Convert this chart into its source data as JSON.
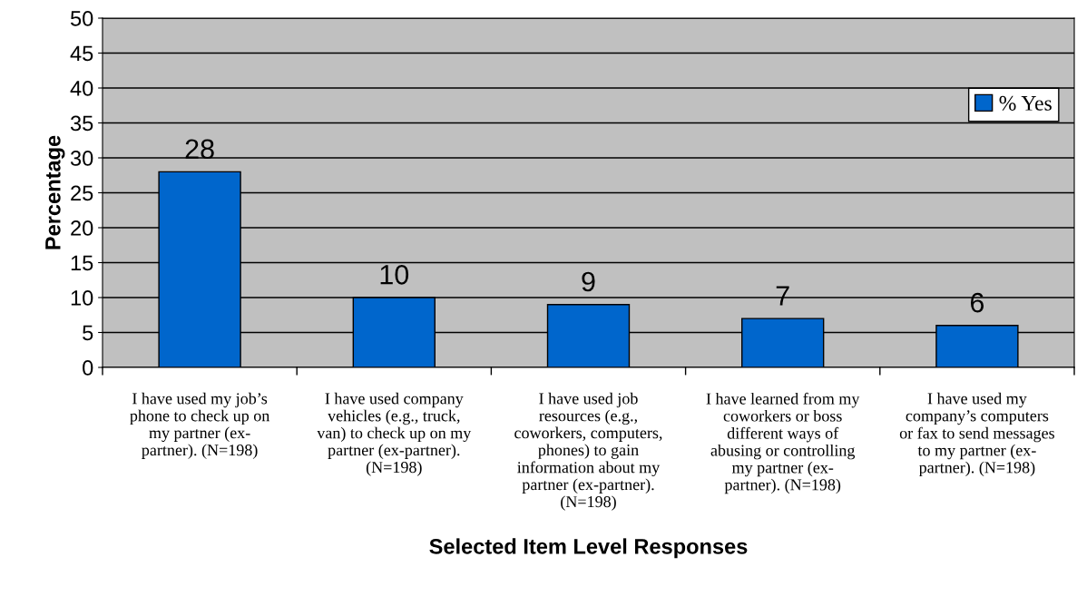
{
  "chart_data": {
    "type": "bar",
    "xlabel": "Selected Item Level Responses",
    "ylabel": "Percentage",
    "categories": [
      "I have used my job’s\nphone to check up on\nmy partner (ex-\npartner). (N=198)",
      "I have used company\nvehicles (e.g., truck,\nvan) to check up on my\npartner (ex-partner).\n(N=198)",
      "I have used job\nresources (e.g.,\ncoworkers, computers,\nphones) to gain\ninformation about my\npartner (ex-partner).\n(N=198)",
      "I have learned from my\ncoworkers or boss\ndifferent ways of\nabusing or controlling\nmy partner (ex-\npartner). (N=198)",
      "I have used my\ncompany’s computers\nor fax to send messages\nto my partner (ex-\npartner). (N=198)"
    ],
    "series": [
      {
        "name": "% Yes",
        "color": "#0066cc",
        "values": [
          28,
          10,
          9,
          7,
          6
        ]
      }
    ],
    "ylim": [
      0,
      50
    ],
    "yticks": [
      0,
      5,
      10,
      15,
      20,
      25,
      30,
      35,
      40,
      45,
      50
    ],
    "grid": "y",
    "legend": "top right",
    "data_labels": true
  }
}
